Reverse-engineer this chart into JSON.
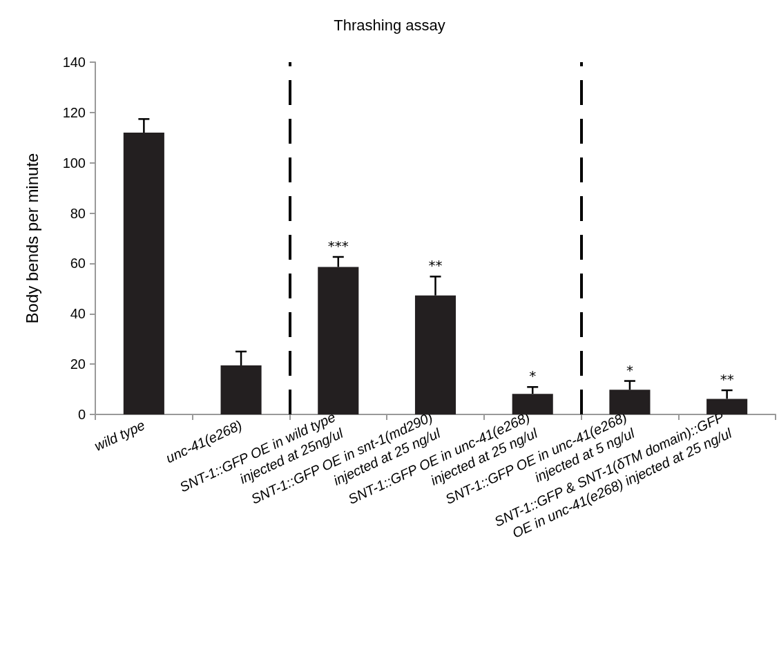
{
  "chart_data": {
    "type": "bar",
    "title": "Thrashing assay",
    "ylabel": "Body bends per minute",
    "categories": [
      "wild type",
      "unc-41(e268)",
      "SNT-1::GFP OE in wild type\ninjected at 25ng/ul",
      "SNT-1::GFP OE in snt-1(md290)\ninjected at 25 ng/ul",
      "SNT-1::GFP OE in unc-41(e268)\ninjected at 25 ng/ul",
      "SNT-1::GFP OE in unc-41(e268)\ninjected at 5 ng/ul",
      "SNT-1::GFP & SNT-1(δTM domain)::GFP\nOE in unc-41(e268) injected at 25 ng/ul"
    ],
    "values": [
      112,
      19.5,
      58.6,
      47.3,
      8.2,
      9.8,
      6.2
    ],
    "errors": [
      [
        112,
        117.4
      ],
      [
        19.5,
        25.0
      ],
      [
        58.6,
        62.6
      ],
      [
        47.3,
        54.8
      ],
      [
        8.2,
        10.9
      ],
      [
        9.8,
        13.3
      ],
      [
        6.2,
        9.6
      ]
    ],
    "color": "#231f20",
    "ylim": [
      0,
      140
    ],
    "yticks": [
      0,
      20,
      40,
      60,
      80,
      100,
      120,
      140
    ],
    "grid": false,
    "annotations": [
      "***",
      "**",
      "*",
      "*",
      "**"
    ]
  }
}
